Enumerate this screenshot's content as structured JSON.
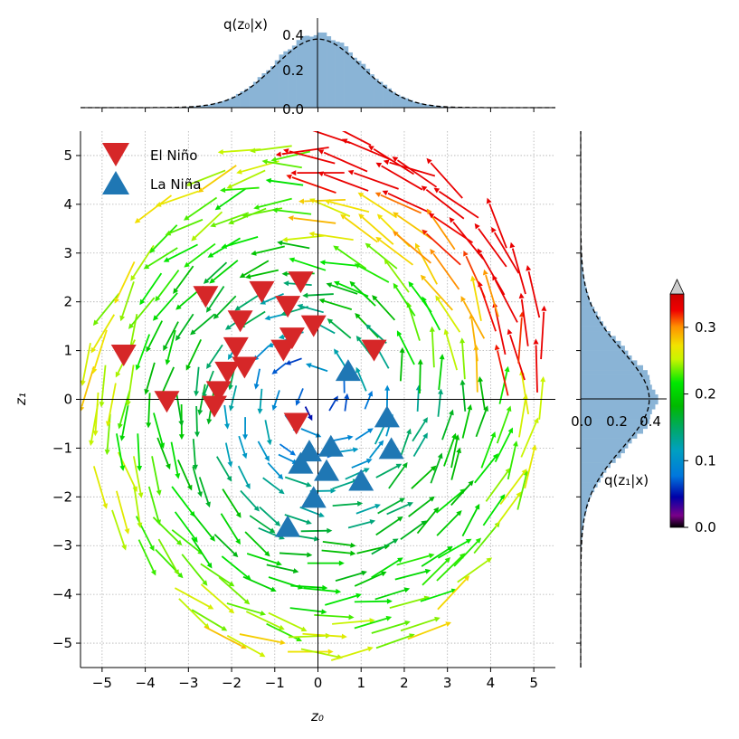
{
  "chart_data": {
    "type": "quiver-scatter-joint",
    "main": {
      "xlabel": "z₀",
      "ylabel": "z₁",
      "xlim": [
        -5.5,
        5.5
      ],
      "ylim": [
        -5.5,
        5.5
      ],
      "xticks": [
        -5,
        -4,
        -3,
        -2,
        -1,
        0,
        1,
        2,
        3,
        4,
        5
      ],
      "yticks": [
        -5,
        -4,
        -3,
        -2,
        -1,
        0,
        1,
        2,
        3,
        4,
        5
      ],
      "xtick_labels": [
        "−5",
        "−4",
        "−3",
        "−2",
        "−1",
        "0",
        "1",
        "2",
        "3",
        "4",
        "5"
      ],
      "ytick_labels": [
        "−5",
        "−4",
        "−3",
        "−2",
        "−1",
        "0",
        "1",
        "2",
        "3",
        "4",
        "5"
      ],
      "grid": true,
      "quiver_field": {
        "description": "approximately rotational (counter-clockwise) flow field, speed increasing with radius",
        "radius_max": 5.4,
        "magnitude_range": [
          0.0,
          0.33
        ]
      },
      "series": [
        {
          "name": "El Niño",
          "marker": "triangle-down",
          "color": "#d62728",
          "x": [
            -4.5,
            -3.5,
            -2.6,
            -1.8,
            -1.3,
            -0.7,
            -0.4,
            -0.1,
            1.3,
            -1.9,
            -1.7,
            -2.1,
            -2.3,
            -2.4,
            -0.8,
            -0.6,
            -0.5
          ],
          "y": [
            0.9,
            -0.05,
            2.1,
            1.6,
            2.2,
            1.9,
            2.4,
            1.5,
            1.0,
            1.05,
            0.65,
            0.55,
            0.15,
            -0.15,
            1.0,
            1.25,
            -0.5
          ]
        },
        {
          "name": "La Niña",
          "marker": "triangle-up",
          "color": "#1f77b4",
          "x": [
            0.7,
            1.6,
            1.7,
            0.3,
            -0.2,
            -0.4,
            0.2,
            1.0,
            -0.1,
            -0.7
          ],
          "y": [
            0.6,
            -0.35,
            -1.0,
            -0.95,
            -1.05,
            -1.3,
            -1.45,
            -1.65,
            -2.0,
            -2.6
          ]
        }
      ],
      "legend": {
        "position": "top-left"
      }
    },
    "top_marginal": {
      "label": "q(z₀|x)",
      "type": "histogram + gaussian-pdf",
      "mean": 0.0,
      "std": 1.0,
      "peak_hist": 0.43,
      "ylim": [
        0,
        0.5
      ],
      "yticks": [
        "0.0",
        "0.2",
        "0.4"
      ]
    },
    "right_marginal": {
      "label": "q(z₁|x)",
      "type": "histogram + gaussian-pdf",
      "mean": 0.0,
      "std": 1.0,
      "peak_hist": 0.44,
      "xlim": [
        0,
        0.5
      ],
      "xticks": [
        "0.0",
        "0.2",
        "0.4"
      ]
    },
    "colorbar": {
      "range": [
        0.0,
        0.35
      ],
      "ticks": [
        "0.0",
        "0.1",
        "0.2",
        "0.3"
      ],
      "tick_values": [
        0.0,
        0.1,
        0.2,
        0.3
      ],
      "colormap": "nipy_spectral",
      "extend": "max"
    }
  }
}
